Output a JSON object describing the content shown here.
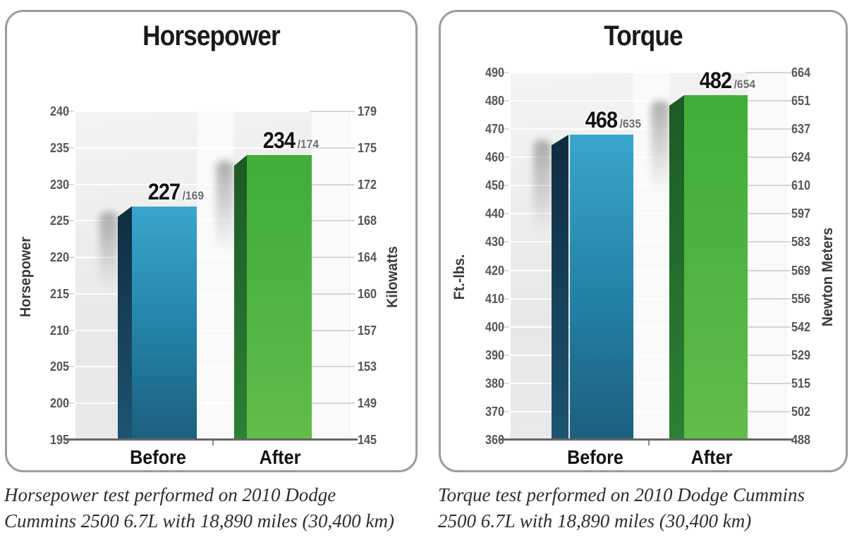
{
  "charts": [
    {
      "title": "Horsepower",
      "left_axis": {
        "title": "Horsepower",
        "ticks": [
          "240",
          "235",
          "230",
          "225",
          "220",
          "215",
          "210",
          "205",
          "200",
          "195"
        ]
      },
      "right_axis": {
        "title": "Kilowatts",
        "ticks": [
          "179",
          "175",
          "172",
          "168",
          "164",
          "160",
          "157",
          "153",
          "149",
          "145"
        ]
      },
      "ylim": [
        195,
        240
      ],
      "categories": [
        "Before",
        "After"
      ],
      "bars": [
        {
          "label": "Before",
          "value": 227,
          "display": "227",
          "secondary": "/169",
          "color_key": "blue"
        },
        {
          "label": "After",
          "value": 234,
          "display": "234",
          "secondary": "/174",
          "color_key": "green"
        }
      ],
      "caption_lines": [
        "Horsepower test performed on 2010 Dodge",
        "Cummins 2500 6.7L with 18,890 miles (30,400 km)"
      ]
    },
    {
      "title": "Torque",
      "left_axis": {
        "title": "Ft.-lbs.",
        "ticks": [
          "490",
          "480",
          "470",
          "460",
          "450",
          "440",
          "430",
          "420",
          "410",
          "400",
          "390",
          "380",
          "370",
          "360"
        ]
      },
      "right_axis": {
        "title": "Newton Meters",
        "ticks": [
          "664",
          "651",
          "637",
          "624",
          "610",
          "597",
          "583",
          "569",
          "556",
          "542",
          "529",
          "515",
          "502",
          "488"
        ]
      },
      "ylim": [
        360,
        490
      ],
      "categories": [
        "Before",
        "After"
      ],
      "bars": [
        {
          "label": "Before",
          "value": 468,
          "display": "468",
          "secondary": "/635",
          "color_key": "blue"
        },
        {
          "label": "After",
          "value": 482,
          "display": "482",
          "secondary": "/654",
          "color_key": "green"
        }
      ],
      "caption_lines": [
        "Torque test performed on 2010 Dodge Cummins",
        "2500 6.7L with 18,890 miles (30,400 km)"
      ]
    }
  ],
  "colors": {
    "blue": {
      "face_top": "#3aa6cd",
      "face_mid": "#2687ad",
      "face_bottom": "#1b5f7e",
      "side_top": "#0f2c40",
      "side_bottom": "#1d5472"
    },
    "green": {
      "face_top": "#41ae39",
      "face_mid": "#4cb341",
      "face_bottom": "#63bd4a",
      "side_top": "#1d5a24",
      "side_bottom": "#2c8034"
    },
    "gridline": "#ffffff",
    "grid_stub": "#d6d6d6",
    "baseline": "#676767",
    "tick_label": "#565656",
    "category_label": "#121212",
    "value_secondary": "#6b6b6b",
    "panel_border": "#9b9b9b",
    "plot_bg": "#e9e9e9"
  },
  "chart_data": [
    {
      "type": "bar",
      "title": "Horsepower",
      "categories": [
        "Before",
        "After"
      ],
      "series": [
        {
          "name": "Horsepower",
          "values": [
            227,
            234
          ]
        },
        {
          "name": "Kilowatts",
          "values": [
            169,
            174
          ]
        }
      ],
      "bar_labels": [
        "227/169",
        "234/174"
      ],
      "ylabel": "Horsepower",
      "y2label": "Kilowatts",
      "ylim": [
        195,
        240
      ],
      "y2lim": [
        145,
        179
      ],
      "yticks": [
        240,
        235,
        230,
        225,
        220,
        215,
        210,
        205,
        200,
        195
      ],
      "y2ticks": [
        179,
        175,
        172,
        168,
        164,
        160,
        157,
        153,
        149,
        145
      ],
      "grid": true,
      "legend": "none",
      "caption": "Horsepower test performed on 2010 Dodge Cummins 2500 6.7L with 18,890 miles (30,400 km)"
    },
    {
      "type": "bar",
      "title": "Torque",
      "categories": [
        "Before",
        "After"
      ],
      "series": [
        {
          "name": "Ft.-lbs.",
          "values": [
            468,
            482
          ]
        },
        {
          "name": "Newton Meters",
          "values": [
            635,
            654
          ]
        }
      ],
      "bar_labels": [
        "468/635",
        "482/654"
      ],
      "ylabel": "Ft.-lbs.",
      "y2label": "Newton Meters",
      "ylim": [
        360,
        490
      ],
      "y2lim": [
        488,
        664
      ],
      "yticks": [
        490,
        480,
        470,
        460,
        450,
        440,
        430,
        420,
        410,
        400,
        390,
        380,
        370,
        360
      ],
      "y2ticks": [
        664,
        651,
        637,
        624,
        610,
        597,
        583,
        569,
        556,
        542,
        529,
        515,
        502,
        488
      ],
      "grid": true,
      "legend": "none",
      "caption": "Torque test performed on 2010 Dodge Cummins 2500 6.7L with 18,890 miles (30,400 km)"
    }
  ]
}
